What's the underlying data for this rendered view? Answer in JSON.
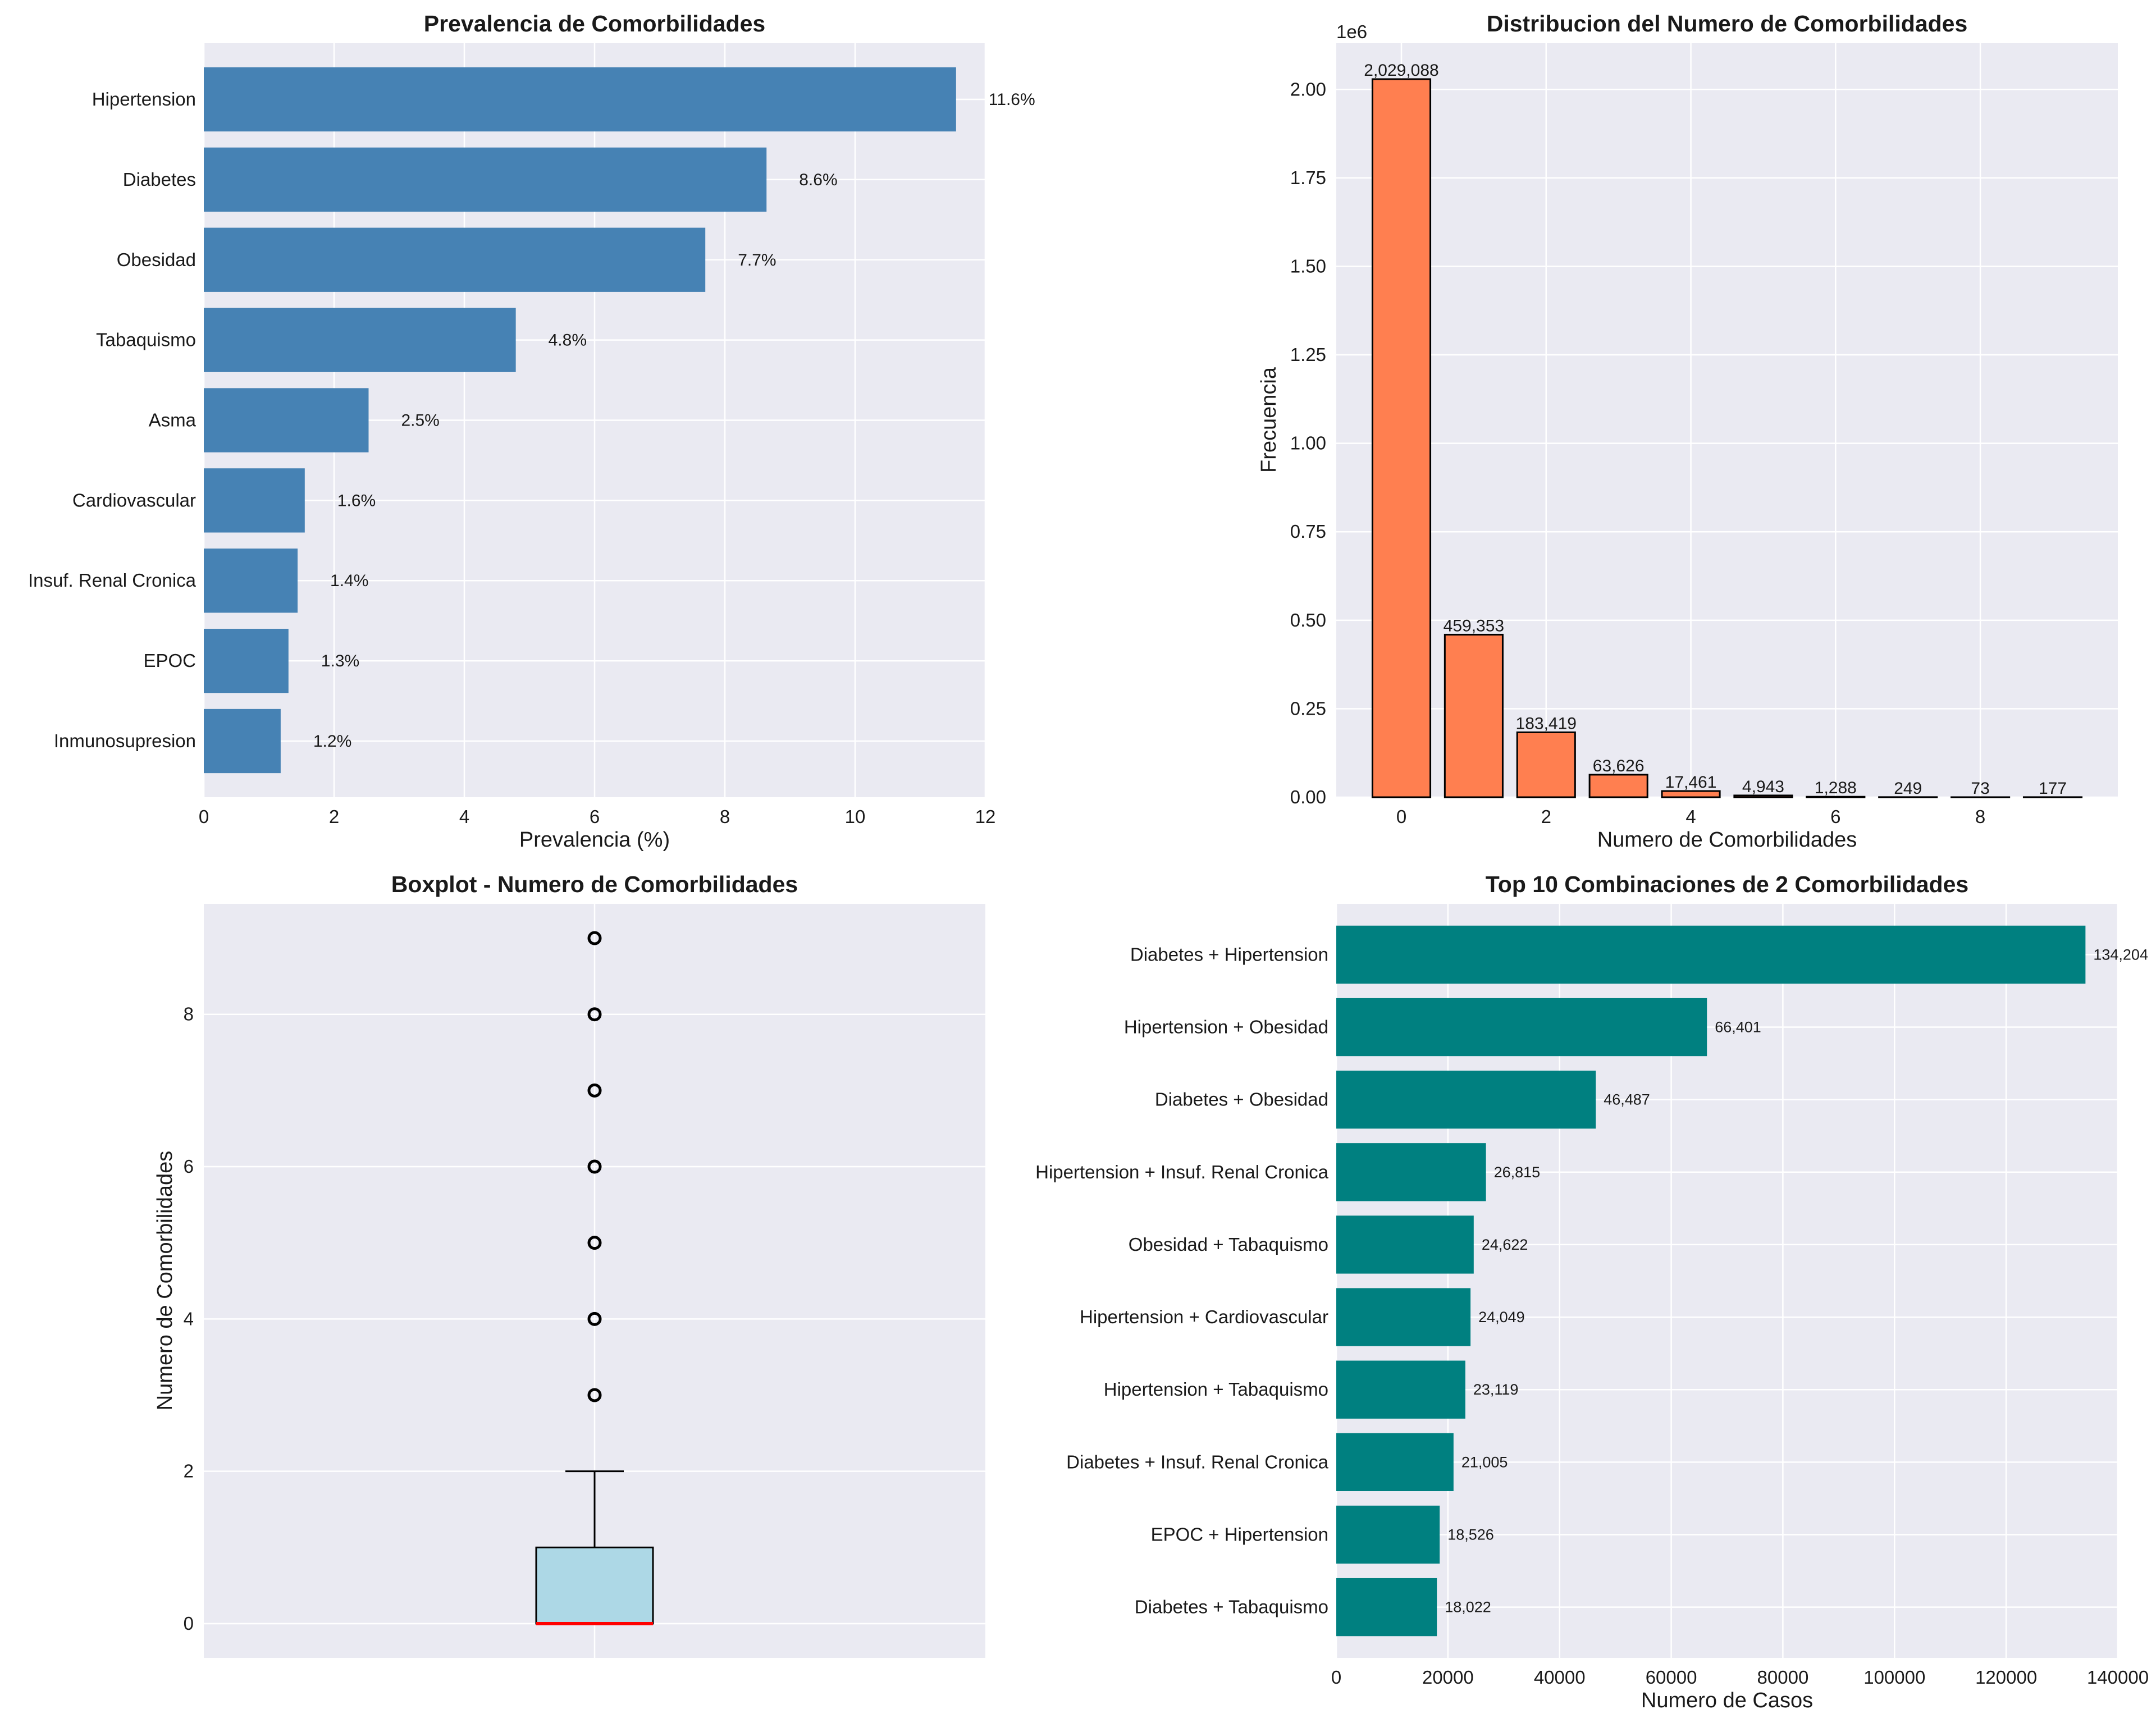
{
  "chart_data": [
    {
      "type": "bar",
      "orientation": "horizontal",
      "title": "Prevalencia de Comorbilidades",
      "xlabel": "Prevalencia (%)",
      "ylabel": "",
      "categories": [
        "Hipertension",
        "Diabetes",
        "Obesidad",
        "Tabaquismo",
        "Asma",
        "Cardiovascular",
        "Insuf. Renal Cronica",
        "EPOC",
        "Inmunosupresion"
      ],
      "values": [
        11.55,
        8.64,
        7.7,
        4.79,
        2.53,
        1.55,
        1.44,
        1.3,
        1.18
      ],
      "data_labels": [
        "11.6%",
        "8.6%",
        "7.7%",
        "4.8%",
        "2.5%",
        "1.6%",
        "1.4%",
        "1.3%",
        "1.2%"
      ],
      "xlim": [
        0,
        12
      ],
      "xticks": [
        "0",
        "2",
        "4",
        "6",
        "8",
        "10",
        "12"
      ],
      "color": "#4682b4",
      "grid": true
    },
    {
      "type": "bar",
      "title": "Distribucion del Numero de Comorbilidades",
      "xlabel": "Numero de Comorbilidades",
      "ylabel": "Frecuencia",
      "offset_text": "1e6",
      "categories": [
        0,
        1,
        2,
        3,
        4,
        5,
        6,
        7,
        8,
        9
      ],
      "values": [
        2029088,
        459353,
        183419,
        63626,
        17461,
        4943,
        1288,
        249,
        73,
        177
      ],
      "data_labels": [
        "2,029,088",
        "459,353",
        "183,419",
        "63,626",
        "17,461",
        "4,943",
        "1,288",
        "249",
        "73",
        "177"
      ],
      "ylim": [
        0,
        2130542
      ],
      "yticks": [
        "0.00",
        "0.25",
        "0.50",
        "0.75",
        "1.00",
        "1.25",
        "1.50",
        "1.75",
        "2.00"
      ],
      "xticks": [
        "0",
        "2",
        "4",
        "6",
        "8"
      ],
      "color": "#ff7f50",
      "edgecolor": "#000000",
      "grid": true
    },
    {
      "type": "boxplot",
      "title": "Boxplot - Numero de Comorbilidades",
      "xlabel": "",
      "ylabel": "Numero de Comorbilidades",
      "q1": 0,
      "median": 0,
      "q3": 1,
      "whisker_low": 0,
      "whisker_high": 2,
      "outliers": [
        3,
        4,
        5,
        6,
        7,
        8,
        9
      ],
      "ylim": [
        -0.45,
        9.45
      ],
      "yticks": [
        "0",
        "2",
        "4",
        "6",
        "8"
      ],
      "box_color": "#add8e6",
      "median_color": "#ff0000",
      "grid": true
    },
    {
      "type": "bar",
      "orientation": "horizontal",
      "title": "Top 10 Combinaciones de 2 Comorbilidades",
      "xlabel": "Numero de Casos",
      "ylabel": "",
      "categories": [
        "Diabetes + Hipertension",
        "Hipertension + Obesidad",
        "Diabetes + Obesidad",
        "Hipertension + Insuf. Renal Cronica",
        "Obesidad + Tabaquismo",
        "Hipertension + Cardiovascular",
        "Hipertension + Tabaquismo",
        "Diabetes + Insuf. Renal Cronica",
        "EPOC + Hipertension",
        "Diabetes + Tabaquismo"
      ],
      "values": [
        134204,
        66401,
        46487,
        26815,
        24622,
        24049,
        23119,
        21005,
        18526,
        18022
      ],
      "data_labels": [
        "134,204",
        "66,401",
        "46,487",
        "26,815",
        "24,622",
        "24,049",
        "23,119",
        "21,005",
        "18,526",
        "18,022"
      ],
      "xlim": [
        0,
        140000
      ],
      "xticks": [
        "0",
        "20000",
        "40000",
        "60000",
        "80000",
        "100000",
        "120000",
        "140000"
      ],
      "color": "#008080",
      "grid": true
    }
  ]
}
